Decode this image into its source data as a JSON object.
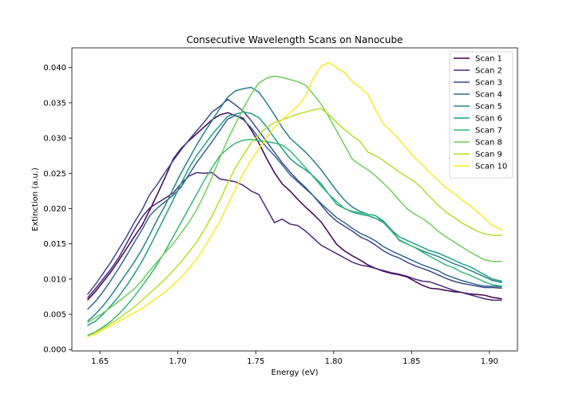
{
  "chart_data": {
    "type": "line",
    "title": "Consecutive Wavelength Scans on Nanocube",
    "xlabel": "Energy (eV)",
    "ylabel": "Extinction (a.u.)",
    "xlim": [
      1.632,
      1.918
    ],
    "ylim": [
      -0.0002,
      0.0428
    ],
    "xticks": [
      1.65,
      1.7,
      1.75,
      1.8,
      1.85,
      1.9
    ],
    "xtick_labels": [
      "1.65",
      "1.70",
      "1.75",
      "1.80",
      "1.85",
      "1.90"
    ],
    "yticks": [
      0.0,
      0.005,
      0.01,
      0.015,
      0.02,
      0.025,
      0.03,
      0.035,
      0.04
    ],
    "ytick_labels": [
      "0.000",
      "0.005",
      "0.010",
      "0.015",
      "0.020",
      "0.025",
      "0.030",
      "0.035",
      "0.040"
    ],
    "grid": false,
    "legend_position": "top-right",
    "x": [
      1.642,
      1.647,
      1.652,
      1.657,
      1.662,
      1.667,
      1.672,
      1.677,
      1.682,
      1.687,
      1.692,
      1.697,
      1.702,
      1.707,
      1.712,
      1.717,
      1.722,
      1.727,
      1.732,
      1.737,
      1.742,
      1.747,
      1.752,
      1.757,
      1.762,
      1.767,
      1.772,
      1.777,
      1.782,
      1.787,
      1.792,
      1.797,
      1.802,
      1.807,
      1.812,
      1.817,
      1.822,
      1.827,
      1.832,
      1.837,
      1.842,
      1.847,
      1.852,
      1.857,
      1.862,
      1.867,
      1.872,
      1.877,
      1.882,
      1.887,
      1.892,
      1.897,
      1.902,
      1.908
    ],
    "series": [
      {
        "name": "Scan 1",
        "color": "#440154",
        "values": [
          0.007,
          0.0082,
          0.0096,
          0.011,
          0.0126,
          0.0143,
          0.016,
          0.0176,
          0.0198,
          0.0221,
          0.0245,
          0.027,
          0.0285,
          0.0296,
          0.0306,
          0.0316,
          0.0326,
          0.0333,
          0.0336,
          0.0332,
          0.0328,
          0.0312,
          0.0293,
          0.0271,
          0.0251,
          0.0235,
          0.0225,
          0.0213,
          0.0202,
          0.0192,
          0.0181,
          0.0165,
          0.0149,
          0.014,
          0.0133,
          0.0127,
          0.012,
          0.0115,
          0.0111,
          0.0108,
          0.0106,
          0.0103,
          0.0097,
          0.0091,
          0.0087,
          0.0086,
          0.0084,
          0.0082,
          0.0081,
          0.0079,
          0.0078,
          0.0077,
          0.0074,
          0.0072
        ]
      },
      {
        "name": "Scan 2",
        "color": "#482878",
        "values": [
          0.0073,
          0.0086,
          0.01,
          0.0114,
          0.013,
          0.015,
          0.017,
          0.0188,
          0.0201,
          0.0208,
          0.0215,
          0.0222,
          0.0235,
          0.0246,
          0.0251,
          0.025,
          0.0251,
          0.0242,
          0.024,
          0.0238,
          0.0233,
          0.0225,
          0.022,
          0.02,
          0.018,
          0.0185,
          0.0178,
          0.0176,
          0.0168,
          0.0158,
          0.0148,
          0.0142,
          0.0136,
          0.013,
          0.0124,
          0.012,
          0.0118,
          0.0115,
          0.0112,
          0.0109,
          0.0107,
          0.0104,
          0.01,
          0.0097,
          0.0096,
          0.0092,
          0.0088,
          0.0084,
          0.0081,
          0.0078,
          0.0075,
          0.0072,
          0.007,
          0.007
        ]
      },
      {
        "name": "Scan 3",
        "color": "#3e4989",
        "values": [
          0.0078,
          0.0092,
          0.0108,
          0.0124,
          0.0142,
          0.016,
          0.018,
          0.0198,
          0.022,
          0.0235,
          0.0252,
          0.0268,
          0.0283,
          0.0297,
          0.031,
          0.0323,
          0.0337,
          0.0345,
          0.0355,
          0.0347,
          0.0338,
          0.0325,
          0.031,
          0.0295,
          0.028,
          0.0265,
          0.0252,
          0.024,
          0.023,
          0.0218,
          0.0205,
          0.0192,
          0.0182,
          0.0175,
          0.0168,
          0.016,
          0.0155,
          0.0148,
          0.014,
          0.0134,
          0.013,
          0.0124,
          0.0119,
          0.0115,
          0.0111,
          0.0106,
          0.0101,
          0.0097,
          0.0094,
          0.0092,
          0.009,
          0.0088,
          0.0088,
          0.0087
        ]
      },
      {
        "name": "Scan 4",
        "color": "#31688e",
        "values": [
          0.0057,
          0.0068,
          0.0082,
          0.0098,
          0.0115,
          0.0133,
          0.0152,
          0.017,
          0.019,
          0.0201,
          0.021,
          0.0219,
          0.023,
          0.0248,
          0.0265,
          0.028,
          0.0295,
          0.0311,
          0.0327,
          0.0332,
          0.0326,
          0.0315,
          0.03,
          0.0287,
          0.0275,
          0.0262,
          0.0248,
          0.0238,
          0.0228,
          0.0218,
          0.0207,
          0.0197,
          0.0187,
          0.018,
          0.0172,
          0.0165,
          0.016,
          0.0154,
          0.0146,
          0.014,
          0.0135,
          0.013,
          0.0125,
          0.012,
          0.0116,
          0.0112,
          0.0106,
          0.0102,
          0.0098,
          0.0095,
          0.0092,
          0.009,
          0.009,
          0.0089
        ]
      },
      {
        "name": "Scan 5",
        "color": "#26828e",
        "values": [
          0.004,
          0.005,
          0.0062,
          0.0076,
          0.0092,
          0.0108,
          0.0124,
          0.0142,
          0.0163,
          0.0185,
          0.0205,
          0.0228,
          0.025,
          0.027,
          0.029,
          0.0308,
          0.0325,
          0.0342,
          0.0358,
          0.0367,
          0.037,
          0.0372,
          0.0365,
          0.035,
          0.0333,
          0.0315,
          0.03,
          0.029,
          0.028,
          0.0268,
          0.0255,
          0.024,
          0.0225,
          0.0212,
          0.0202,
          0.0196,
          0.0192,
          0.019,
          0.0182,
          0.017,
          0.0155,
          0.015,
          0.0145,
          0.014,
          0.0136,
          0.0132,
          0.0127,
          0.0122,
          0.0118,
          0.0113,
          0.0108,
          0.0103,
          0.0098,
          0.0095
        ]
      },
      {
        "name": "Scan 6",
        "color": "#1f9e89",
        "values": [
          0.0034,
          0.004,
          0.005,
          0.0062,
          0.0075,
          0.009,
          0.0107,
          0.0125,
          0.0146,
          0.0168,
          0.019,
          0.0212,
          0.0235,
          0.0257,
          0.0275,
          0.029,
          0.0305,
          0.0318,
          0.0331,
          0.0334,
          0.0337,
          0.0335,
          0.0329,
          0.0316,
          0.03,
          0.0285,
          0.0271,
          0.0262,
          0.0255,
          0.0246,
          0.0235,
          0.022,
          0.0206,
          0.02,
          0.0195,
          0.0192,
          0.019,
          0.0186,
          0.018,
          0.017,
          0.016,
          0.0155,
          0.015,
          0.0145,
          0.014,
          0.0137,
          0.0132,
          0.0127,
          0.0122,
          0.0118,
          0.0112,
          0.0106,
          0.01,
          0.0097
        ]
      },
      {
        "name": "Scan 7",
        "color": "#35b779",
        "values": [
          0.002,
          0.0025,
          0.0032,
          0.004,
          0.005,
          0.0062,
          0.0075,
          0.009,
          0.0105,
          0.0122,
          0.014,
          0.016,
          0.018,
          0.02,
          0.022,
          0.024,
          0.0258,
          0.0275,
          0.0285,
          0.0293,
          0.0297,
          0.0298,
          0.0296,
          0.0295,
          0.0293,
          0.029,
          0.0282,
          0.027,
          0.0258,
          0.0245,
          0.0232,
          0.022,
          0.021,
          0.02,
          0.0196,
          0.0194,
          0.0192,
          0.019,
          0.018,
          0.0168,
          0.0156,
          0.015,
          0.0145,
          0.0138,
          0.0132,
          0.0126,
          0.012,
          0.0116,
          0.011,
          0.0106,
          0.0101,
          0.0096,
          0.0092,
          0.009
        ]
      },
      {
        "name": "Scan 8",
        "color": "#6ece58",
        "values": [
          0.0038,
          0.0045,
          0.0052,
          0.006,
          0.0068,
          0.0077,
          0.0086,
          0.0098,
          0.0112,
          0.0125,
          0.0138,
          0.015,
          0.0165,
          0.018,
          0.0198,
          0.022,
          0.0245,
          0.0272,
          0.0298,
          0.032,
          0.0342,
          0.0362,
          0.0378,
          0.0385,
          0.0388,
          0.0386,
          0.0383,
          0.038,
          0.0375,
          0.0362,
          0.0348,
          0.033,
          0.031,
          0.029,
          0.027,
          0.0262,
          0.0255,
          0.0246,
          0.0236,
          0.0225,
          0.0212,
          0.02,
          0.0192,
          0.0186,
          0.0178,
          0.0168,
          0.016,
          0.0153,
          0.0146,
          0.0139,
          0.0133,
          0.0127,
          0.0125,
          0.0125
        ]
      },
      {
        "name": "Scan 9",
        "color": "#b5de2b",
        "values": [
          0.0018,
          0.0024,
          0.003,
          0.0037,
          0.0044,
          0.0052,
          0.006,
          0.007,
          0.008,
          0.009,
          0.01,
          0.0112,
          0.0124,
          0.0138,
          0.0152,
          0.017,
          0.019,
          0.0212,
          0.0236,
          0.0258,
          0.0276,
          0.0293,
          0.0305,
          0.0315,
          0.0322,
          0.0326,
          0.033,
          0.0334,
          0.0337,
          0.034,
          0.0342,
          0.0333,
          0.0322,
          0.0312,
          0.0303,
          0.0295,
          0.028,
          0.0275,
          0.0268,
          0.026,
          0.0252,
          0.0245,
          0.0238,
          0.0228,
          0.0216,
          0.0205,
          0.0195,
          0.0188,
          0.018,
          0.0174,
          0.0168,
          0.0164,
          0.0162,
          0.0162
        ]
      },
      {
        "name": "Scan 10",
        "color": "#fde725",
        "values": [
          0.0018,
          0.0022,
          0.0028,
          0.0034,
          0.004,
          0.0046,
          0.0052,
          0.0058,
          0.0066,
          0.0074,
          0.0082,
          0.0092,
          0.0102,
          0.0115,
          0.0128,
          0.0145,
          0.0163,
          0.0182,
          0.0205,
          0.0228,
          0.025,
          0.0268,
          0.0285,
          0.03,
          0.0315,
          0.0326,
          0.0336,
          0.0345,
          0.036,
          0.0385,
          0.0402,
          0.0407,
          0.04,
          0.0393,
          0.038,
          0.0372,
          0.0362,
          0.034,
          0.032,
          0.031,
          0.0298,
          0.0285,
          0.0272,
          0.0262,
          0.025,
          0.024,
          0.023,
          0.0222,
          0.0213,
          0.0205,
          0.0196,
          0.0186,
          0.0176,
          0.017
        ]
      }
    ]
  }
}
